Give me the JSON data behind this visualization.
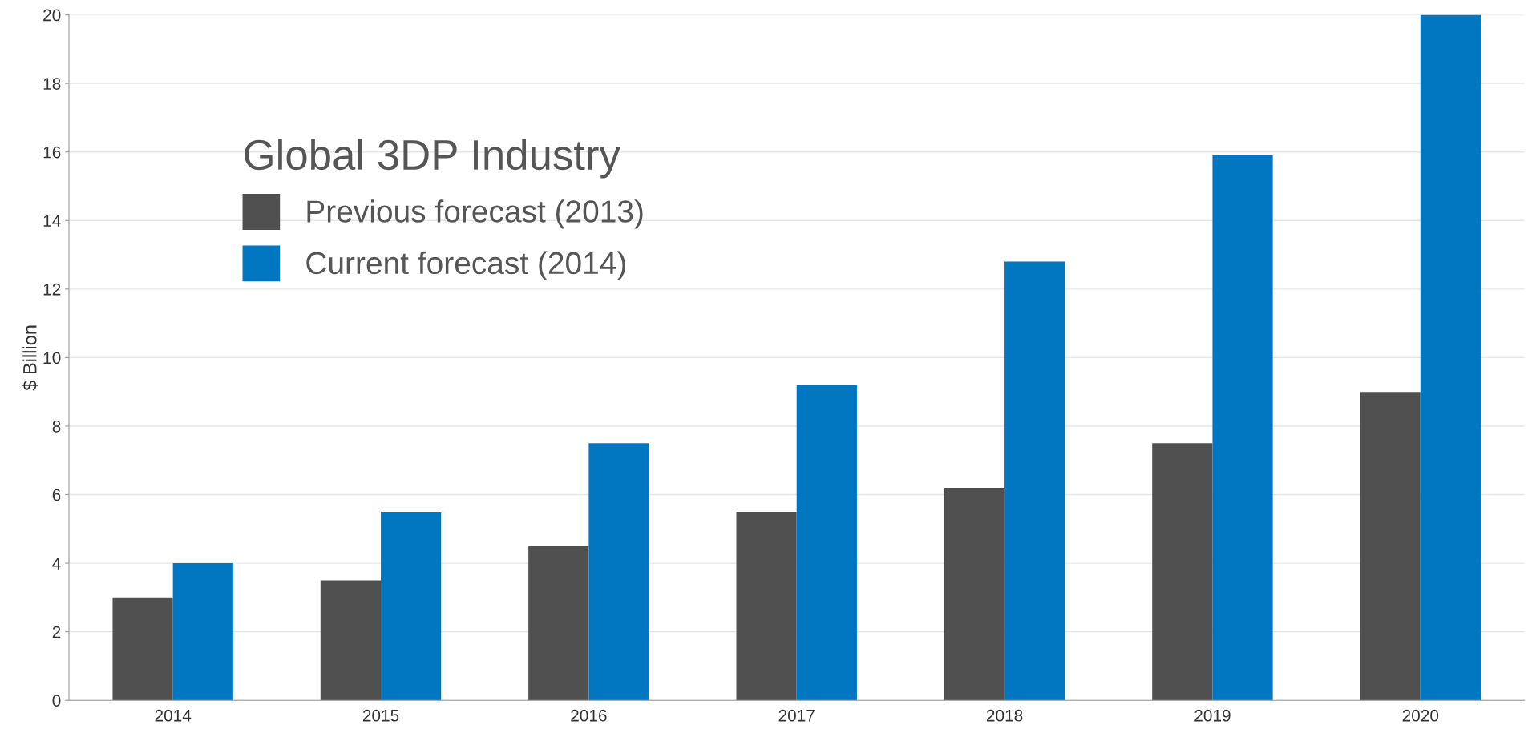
{
  "chart_data": {
    "type": "bar",
    "ylabel": "$ Billion",
    "legend_title": "Global 3DP Industry",
    "categories": [
      "2014",
      "2015",
      "2016",
      "2017",
      "2018",
      "2019",
      "2020"
    ],
    "series": [
      {
        "name": "Previous forecast (2013)",
        "color": "#505050",
        "values": [
          3.0,
          3.5,
          4.5,
          5.5,
          6.2,
          7.5,
          9.0
        ]
      },
      {
        "name": "Current forecast (2014)",
        "color": "#0077c0",
        "values": [
          4.0,
          5.5,
          7.5,
          9.2,
          12.8,
          15.9,
          20.0
        ]
      }
    ],
    "ylim": [
      0,
      20
    ],
    "yticks": [
      0,
      2,
      4,
      6,
      8,
      10,
      12,
      14,
      16,
      18,
      20
    ],
    "grid": "y",
    "legend": "top left"
  }
}
